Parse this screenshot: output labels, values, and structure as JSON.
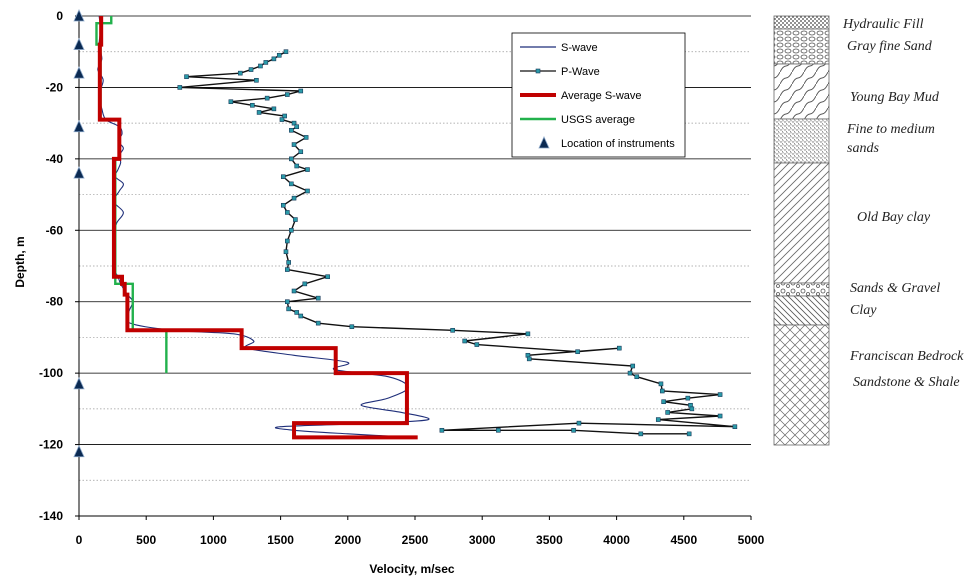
{
  "chart_data": {
    "type": "line",
    "xlabel": "Velocity, m/sec",
    "ylabel": "Depth, m",
    "xlim": [
      0,
      5000
    ],
    "ylim": [
      -140,
      0
    ],
    "x_ticks": [
      "0",
      "500",
      "1000",
      "1500",
      "2000",
      "2500",
      "3000",
      "3500",
      "4000",
      "4500",
      "5000"
    ],
    "y_ticks": [
      "0",
      "-20",
      "-40",
      "-60",
      "-80",
      "-100",
      "-120",
      "-140"
    ],
    "legend_position": "top-right",
    "series": [
      {
        "name": "S-wave",
        "color": "#1f2f7a",
        "points": [
          [
            150,
            0
          ],
          [
            160,
            -4
          ],
          [
            150,
            -8
          ],
          [
            170,
            -12
          ],
          [
            140,
            -15
          ],
          [
            180,
            -18
          ],
          [
            150,
            -22
          ],
          [
            170,
            -26
          ],
          [
            200,
            -29
          ],
          [
            300,
            -31
          ],
          [
            320,
            -33
          ],
          [
            290,
            -35
          ],
          [
            330,
            -37
          ],
          [
            300,
            -39
          ],
          [
            310,
            -41
          ],
          [
            290,
            -43
          ],
          [
            270,
            -45
          ],
          [
            330,
            -47
          ],
          [
            300,
            -49
          ],
          [
            260,
            -52
          ],
          [
            330,
            -55
          ],
          [
            280,
            -58
          ],
          [
            260,
            -62
          ],
          [
            270,
            -66
          ],
          [
            250,
            -70
          ],
          [
            290,
            -73
          ],
          [
            310,
            -75
          ],
          [
            360,
            -78
          ],
          [
            400,
            -80
          ],
          [
            370,
            -83
          ],
          [
            380,
            -86
          ],
          [
            700,
            -88
          ],
          [
            1150,
            -89
          ],
          [
            1300,
            -91
          ],
          [
            1250,
            -93
          ],
          [
            1600,
            -95
          ],
          [
            2000,
            -97
          ],
          [
            1900,
            -99
          ],
          [
            2300,
            -101
          ],
          [
            2450,
            -104
          ],
          [
            2300,
            -107
          ],
          [
            2100,
            -109
          ],
          [
            2400,
            -111
          ],
          [
            2600,
            -113
          ],
          [
            2200,
            -114
          ],
          [
            1500,
            -115
          ],
          [
            1600,
            -116
          ],
          [
            2000,
            -117
          ],
          [
            2500,
            -118
          ]
        ]
      },
      {
        "name": "P-Wave",
        "color": "#111111",
        "points": [
          [
            1540,
            -10
          ],
          [
            1490,
            -11
          ],
          [
            1450,
            -12
          ],
          [
            1390,
            -13
          ],
          [
            1350,
            -14
          ],
          [
            1280,
            -15
          ],
          [
            1200,
            -16
          ],
          [
            800,
            -17
          ],
          [
            1320,
            -18
          ],
          [
            750,
            -20
          ],
          [
            1650,
            -21
          ],
          [
            1550,
            -22
          ],
          [
            1400,
            -23
          ],
          [
            1130,
            -24
          ],
          [
            1290,
            -25
          ],
          [
            1450,
            -26
          ],
          [
            1340,
            -27
          ],
          [
            1530,
            -28
          ],
          [
            1510,
            -29
          ],
          [
            1600,
            -30
          ],
          [
            1620,
            -31
          ],
          [
            1580,
            -32
          ],
          [
            1690,
            -34
          ],
          [
            1600,
            -36
          ],
          [
            1650,
            -38
          ],
          [
            1580,
            -40
          ],
          [
            1620,
            -42
          ],
          [
            1700,
            -43
          ],
          [
            1520,
            -45
          ],
          [
            1580,
            -47
          ],
          [
            1700,
            -49
          ],
          [
            1600,
            -51
          ],
          [
            1520,
            -53
          ],
          [
            1550,
            -55
          ],
          [
            1610,
            -57
          ],
          [
            1580,
            -60
          ],
          [
            1550,
            -63
          ],
          [
            1540,
            -66
          ],
          [
            1560,
            -69
          ],
          [
            1550,
            -71
          ],
          [
            1850,
            -73
          ],
          [
            1680,
            -75
          ],
          [
            1600,
            -77
          ],
          [
            1780,
            -79
          ],
          [
            1550,
            -80
          ],
          [
            1560,
            -82
          ],
          [
            1620,
            -83
          ],
          [
            1650,
            -84
          ],
          [
            1780,
            -86
          ],
          [
            2030,
            -87
          ],
          [
            2780,
            -88
          ],
          [
            3340,
            -89
          ],
          [
            2870,
            -91
          ],
          [
            2960,
            -92
          ],
          [
            3710,
            -94
          ],
          [
            4020,
            -93
          ],
          [
            3340,
            -95
          ],
          [
            3350,
            -96
          ],
          [
            4120,
            -98
          ],
          [
            4100,
            -100
          ],
          [
            4150,
            -101
          ],
          [
            4330,
            -103
          ],
          [
            4340,
            -105
          ],
          [
            4770,
            -106
          ],
          [
            4530,
            -107
          ],
          [
            4350,
            -108
          ],
          [
            4550,
            -109
          ],
          [
            4560,
            -110
          ],
          [
            4380,
            -111
          ],
          [
            4770,
            -112
          ],
          [
            4310,
            -113
          ],
          [
            4880,
            -115
          ],
          [
            3720,
            -114
          ],
          [
            2700,
            -116
          ],
          [
            3120,
            -116
          ],
          [
            3680,
            -116
          ],
          [
            4180,
            -117
          ],
          [
            4540,
            -117
          ]
        ]
      },
      {
        "name": "Average S-wave",
        "color": "#c00000",
        "points": [
          [
            165,
            0
          ],
          [
            165,
            -8
          ],
          [
            155,
            -8
          ],
          [
            155,
            -29
          ],
          [
            300,
            -29
          ],
          [
            300,
            -40
          ],
          [
            260,
            -40
          ],
          [
            260,
            -73
          ],
          [
            320,
            -73
          ],
          [
            320,
            -75
          ],
          [
            340,
            -75
          ],
          [
            340,
            -78
          ],
          [
            360,
            -78
          ],
          [
            360,
            -88
          ],
          [
            1210,
            -88
          ],
          [
            1210,
            -93
          ],
          [
            1910,
            -93
          ],
          [
            1910,
            -100
          ],
          [
            2440,
            -100
          ],
          [
            2440,
            -114
          ],
          [
            1600,
            -114
          ],
          [
            1600,
            -118
          ],
          [
            2520,
            -118
          ]
        ]
      },
      {
        "name": "USGS average",
        "color": "#22b14c",
        "points": [
          [
            240,
            0
          ],
          [
            240,
            -2
          ],
          [
            130,
            -2
          ],
          [
            130,
            -8
          ],
          [
            160,
            -8
          ],
          [
            160,
            -29
          ],
          [
            300,
            -29
          ],
          [
            300,
            -40
          ],
          [
            270,
            -40
          ],
          [
            270,
            -75
          ],
          [
            400,
            -75
          ],
          [
            400,
            -88
          ],
          [
            650,
            -88
          ],
          [
            650,
            -100
          ]
        ]
      },
      {
        "name": "Location of instruments",
        "color": "#0b2a52",
        "markers": [
          [
            0,
            0
          ],
          [
            0,
            -8
          ],
          [
            0,
            -16
          ],
          [
            0,
            -31
          ],
          [
            0,
            -44
          ],
          [
            0,
            -103
          ],
          [
            0,
            -122
          ]
        ]
      }
    ]
  },
  "strata": [
    {
      "label": "Hydraulic Fill",
      "top": 0,
      "bottom": 1,
      "pattern": "fill"
    },
    {
      "label": "Gray fine Sand",
      "top": 1,
      "bottom": 3,
      "pattern": "sand"
    },
    {
      "label": "Young Bay Mud",
      "top": 3,
      "bottom": 8,
      "pattern": "mud"
    },
    {
      "label": "Fine to medium sands",
      "top": 8,
      "bottom": 12,
      "pattern": "dots"
    },
    {
      "label": "Old Bay clay",
      "top": 12,
      "bottom": 24,
      "pattern": "hatch"
    },
    {
      "label": "Sands & Gravel",
      "top": 24,
      "bottom": 25.5,
      "pattern": "gravel"
    },
    {
      "label": "Clay",
      "top": 25.5,
      "bottom": 28.5,
      "pattern": "clay"
    },
    {
      "label": "Franciscan Bedrock",
      "top": 28.5,
      "bottom": 40,
      "pattern": "bedrock"
    },
    {
      "label": "Sandstone & Shale",
      "top": 28.5,
      "bottom": 40,
      "pattern": "bedrock"
    }
  ]
}
